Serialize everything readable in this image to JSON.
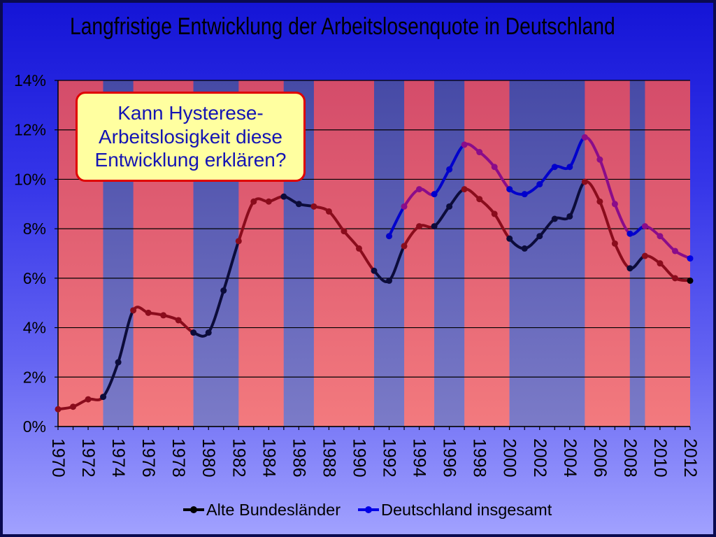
{
  "slide": {
    "background_gradient": [
      "#1414d6",
      "#3434e8",
      "#6464f2",
      "#a2a2ff"
    ],
    "frame_color": "#0a0a50"
  },
  "callout": {
    "lines": [
      "Kann Hysterese-",
      "Arbeitslosigkeit diese",
      "Entwicklung erklären?"
    ],
    "fill": "#ffffa0",
    "border_color": "#e00000",
    "text_color": "#1414b4"
  },
  "chart_data": {
    "type": "line",
    "title": "Langfristige Entwicklung der Arbeitslosenquote in Deutschland",
    "xlim": [
      1970,
      2012
    ],
    "ylim": [
      0,
      14
    ],
    "y_ticks": [
      0,
      2,
      4,
      6,
      8,
      10,
      12,
      14
    ],
    "y_tick_labels": [
      "0%",
      "2%",
      "4%",
      "6%",
      "8%",
      "10%",
      "12%",
      "14%"
    ],
    "x_ticks": [
      1970,
      1972,
      1974,
      1976,
      1978,
      1980,
      1982,
      1984,
      1986,
      1988,
      1990,
      1992,
      1994,
      1996,
      1998,
      2000,
      2002,
      2004,
      2006,
      2008,
      2010,
      2012
    ],
    "x_tick_labels": [
      "1970",
      "1972",
      "1974",
      "1976",
      "1978",
      "1980",
      "1982",
      "1984",
      "1986",
      "1988",
      "1990",
      "1992",
      "1994",
      "1996",
      "1998",
      "2000",
      "2002",
      "2004",
      "2006",
      "2008",
      "2010",
      "2012"
    ],
    "grid": true,
    "smoothed": true,
    "legend": "bottom",
    "band_colors": {
      "red": [
        "#d44c6a",
        "#f37a7e"
      ],
      "blue": [
        "#464aa6",
        "#7b7bc8"
      ]
    },
    "bands": [
      {
        "from": 1970,
        "to": 1973,
        "color": "red"
      },
      {
        "from": 1973,
        "to": 1975,
        "color": "blue"
      },
      {
        "from": 1975,
        "to": 1979,
        "color": "red"
      },
      {
        "from": 1979,
        "to": 1982,
        "color": "blue"
      },
      {
        "from": 1982,
        "to": 1985,
        "color": "red"
      },
      {
        "from": 1985,
        "to": 1987,
        "color": "blue"
      },
      {
        "from": 1987,
        "to": 1991,
        "color": "red"
      },
      {
        "from": 1991,
        "to": 1993,
        "color": "blue"
      },
      {
        "from": 1993,
        "to": 1995,
        "color": "red"
      },
      {
        "from": 1995,
        "to": 1997,
        "color": "blue"
      },
      {
        "from": 1997,
        "to": 2000,
        "color": "red"
      },
      {
        "from": 2000,
        "to": 2005,
        "color": "blue"
      },
      {
        "from": 2005,
        "to": 2008,
        "color": "red"
      },
      {
        "from": 2008,
        "to": 2009,
        "color": "blue"
      },
      {
        "from": 2009,
        "to": 2012,
        "color": "red"
      }
    ],
    "series": [
      {
        "name": "Alte Bundesländer",
        "legend_color": "#000000",
        "line_colors": {
          "red": "#8a0c1c",
          "blue": "#0c0c3a"
        },
        "x": [
          1970,
          1971,
          1972,
          1973,
          1974,
          1975,
          1976,
          1977,
          1978,
          1979,
          1980,
          1981,
          1982,
          1983,
          1984,
          1985,
          1986,
          1987,
          1988,
          1989,
          1990,
          1991,
          1992,
          1993,
          1994,
          1995,
          1996,
          1997,
          1998,
          1999,
          2000,
          2001,
          2002,
          2003,
          2004,
          2005,
          2006,
          2007,
          2008,
          2009,
          2010,
          2011,
          2012
        ],
        "values": [
          0.7,
          0.8,
          1.1,
          1.2,
          2.6,
          4.7,
          4.6,
          4.5,
          4.3,
          3.8,
          3.8,
          5.5,
          7.5,
          9.1,
          9.1,
          9.3,
          9.0,
          8.9,
          8.7,
          7.9,
          7.2,
          6.3,
          5.9,
          7.3,
          8.1,
          8.1,
          8.9,
          9.6,
          9.2,
          8.6,
          7.6,
          7.2,
          7.7,
          8.4,
          8.5,
          9.9,
          9.1,
          7.4,
          6.4,
          6.9,
          6.6,
          6.0,
          5.9
        ]
      },
      {
        "name": "Deutschland insgesamt",
        "legend_color": "#0000e6",
        "line_colors": {
          "red": "#8a0c8a",
          "blue": "#0000cc"
        },
        "x": [
          1992,
          1993,
          1994,
          1995,
          1996,
          1997,
          1998,
          1999,
          2000,
          2001,
          2002,
          2003,
          2004,
          2005,
          2006,
          2007,
          2008,
          2009,
          2010,
          2011,
          2012
        ],
        "values": [
          7.7,
          8.9,
          9.6,
          9.4,
          10.4,
          11.4,
          11.1,
          10.5,
          9.6,
          9.4,
          9.8,
          10.5,
          10.5,
          11.7,
          10.8,
          9.0,
          7.8,
          8.1,
          7.7,
          7.1,
          6.8
        ]
      }
    ]
  }
}
